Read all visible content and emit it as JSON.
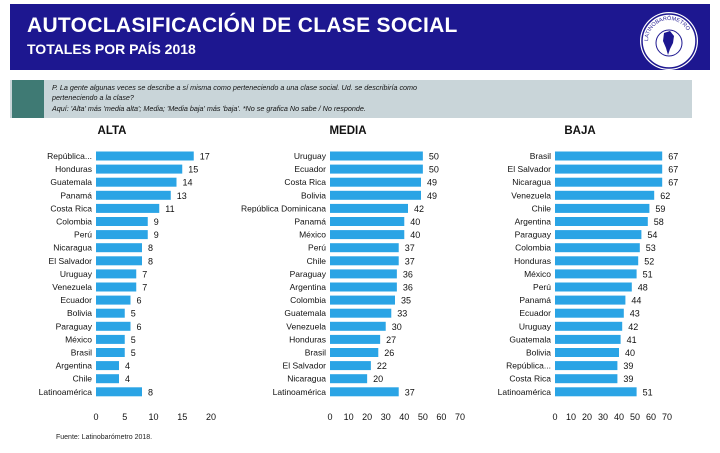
{
  "header": {
    "title": "AUTOCLASIFICACIÓN DE CLASE SOCIAL",
    "subtitle": "TOTALES POR PAÍS 2018",
    "logo_text": "LATINOBARÓMETRO"
  },
  "question": {
    "line1": "P. La gente algunas veces se describe a sí misma como perteneciendo a una clase social. Ud. se describiría como",
    "line2": "perteneciendo a la clase?",
    "line3": "Aquí: 'Alta' más 'media alta'; Media; 'Media baja' más 'baja'. *No se grafica No sabe / No responde."
  },
  "source": "Fuente: Latinobarómetro 2018.",
  "colors": {
    "header_bg": "#1d1790",
    "bar": "#2aa4e5",
    "question_bg": "#c9d5d9",
    "question_square": "#3f7a74"
  },
  "chart_data": [
    {
      "type": "bar",
      "orientation": "horizontal",
      "title": "ALTA",
      "categories": [
        "República...",
        "Honduras",
        "Guatemala",
        "Panamá",
        "Costa Rica",
        "Colombia",
        "Perú",
        "Nicaragua",
        "El Salvador",
        "Uruguay",
        "Venezuela",
        "Ecuador",
        "Bolivia",
        "Paraguay",
        "México",
        "Brasil",
        "Argentina",
        "Chile",
        "Latinoamérica"
      ],
      "values": [
        17,
        15,
        14,
        13,
        11,
        9,
        9,
        8,
        8,
        7,
        7,
        6,
        5,
        6,
        5,
        5,
        4,
        4,
        8
      ],
      "xlim": [
        0,
        20
      ],
      "xticks": [
        0,
        5,
        10,
        15,
        20
      ]
    },
    {
      "type": "bar",
      "orientation": "horizontal",
      "title": "MEDIA",
      "categories": [
        "Uruguay",
        "Ecuador",
        "Costa Rica",
        "Bolivia",
        "República Dominicana",
        "Panamá",
        "México",
        "Perú",
        "Chile",
        "Paraguay",
        "Argentina",
        "Colombia",
        "Guatemala",
        "Venezuela",
        "Honduras",
        "Brasil",
        "El Salvador",
        "Nicaragua",
        "Latinoamérica"
      ],
      "values": [
        50,
        50,
        49,
        49,
        42,
        40,
        40,
        37,
        37,
        36,
        36,
        35,
        33,
        30,
        27,
        26,
        22,
        20,
        37
      ],
      "xlim": [
        0,
        70
      ],
      "xticks": [
        0,
        10,
        20,
        30,
        40,
        50,
        60,
        70
      ]
    },
    {
      "type": "bar",
      "orientation": "horizontal",
      "title": "BAJA",
      "categories": [
        "Brasil",
        "El Salvador",
        "Nicaragua",
        "Venezuela",
        "Chile",
        "Argentina",
        "Paraguay",
        "Colombia",
        "Honduras",
        "México",
        "Perú",
        "Panamá",
        "Ecuador",
        "Uruguay",
        "Guatemala",
        "Bolivia",
        "República...",
        "Costa Rica",
        "Latinoamérica"
      ],
      "values": [
        67,
        67,
        67,
        62,
        59,
        58,
        54,
        53,
        52,
        51,
        48,
        44,
        43,
        42,
        41,
        40,
        39,
        39,
        51
      ],
      "xlim": [
        0,
        70
      ],
      "xticks": [
        0,
        10,
        20,
        30,
        40,
        50,
        60,
        70
      ]
    }
  ]
}
